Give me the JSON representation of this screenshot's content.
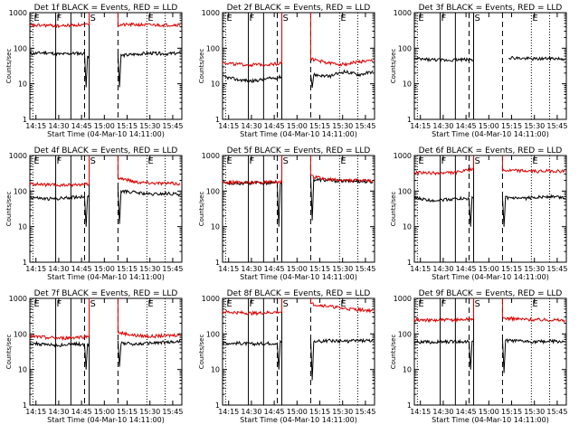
{
  "figure": {
    "background": "#ffffff",
    "series_colors": {
      "events": "#000000",
      "lld": "#dd0000"
    },
    "x_ticks": [
      {
        "t": 4,
        "label": "14:15"
      },
      {
        "t": 19,
        "label": "14:30"
      },
      {
        "t": 34,
        "label": "14:45"
      },
      {
        "t": 49,
        "label": "15:00"
      },
      {
        "t": 64,
        "label": "15:15"
      },
      {
        "t": 79,
        "label": "15:30"
      },
      {
        "t": 94,
        "label": "15:45"
      }
    ],
    "y_ticks": [
      {
        "v": 1,
        "label": "1"
      },
      {
        "v": 10,
        "label": "10"
      },
      {
        "v": 100,
        "label": "100"
      },
      {
        "v": 1000,
        "label": "1000"
      }
    ],
    "ylabel": "Counts/sec",
    "xlabel": "Start Time (04-Mar-10 14:11:00)",
    "markers": [
      {
        "t": 2,
        "letter": "E",
        "style": "dotted"
      },
      {
        "t": 17,
        "letter": "F",
        "style": "solid"
      },
      {
        "t": 27,
        "letter": "",
        "style": "solid"
      },
      {
        "t": 36,
        "letter": "",
        "style": "dashed"
      },
      {
        "t": 39,
        "letter": "S",
        "style": "solid"
      },
      {
        "t": 58,
        "letter": "",
        "style": "dashed"
      },
      {
        "t": 77,
        "letter": "E",
        "style": "dotted"
      },
      {
        "t": 89,
        "letter": "",
        "style": "dotted"
      }
    ]
  },
  "chart_data": [
    {
      "type": "line",
      "title": "Det  1f  BLACK = Events, RED = LLD",
      "xlabel": "Start Time (04-Mar-10 14:11:00)",
      "ylabel": "Counts/sec",
      "y_scale": "log",
      "ylim": [
        1,
        1000
      ],
      "x_range": [
        "14:11",
        "15:51"
      ],
      "series": [
        {
          "key": "events",
          "points": [
            [
              0,
              70
            ],
            [
              10,
              75
            ],
            [
              20,
              68
            ],
            [
              30,
              72
            ],
            [
              36,
              70
            ],
            [
              37,
              8
            ],
            [
              38,
              60
            ],
            [
              39,
              60
            ]
          ],
          "after": [
            [
              58,
              70
            ],
            [
              59,
              8
            ],
            [
              60,
              62
            ],
            [
              70,
              68
            ],
            [
              80,
              72
            ],
            [
              90,
              70
            ],
            [
              99,
              72
            ]
          ]
        },
        {
          "key": "lld",
          "points": [
            [
              0,
              430
            ],
            [
              10,
              440
            ],
            [
              20,
              420
            ],
            [
              30,
              450
            ],
            [
              39,
              450
            ]
          ],
          "after": [
            [
              58,
              450
            ],
            [
              70,
              460
            ],
            [
              80,
              450
            ],
            [
              90,
              450
            ],
            [
              99,
              460
            ]
          ]
        }
      ]
    },
    {
      "type": "line",
      "title": "Det  2f  BLACK = Events, RED = LLD",
      "xlabel": "Start Time (04-Mar-10 14:11:00)",
      "ylabel": "Counts/sec",
      "y_scale": "log",
      "ylim": [
        1,
        1000
      ],
      "x_range": [
        "14:11",
        "15:51"
      ],
      "series": [
        {
          "key": "events",
          "points": [
            [
              0,
              16
            ],
            [
              10,
              13
            ],
            [
              20,
              12
            ],
            [
              30,
              14
            ],
            [
              36,
              15
            ],
            [
              39,
              16
            ]
          ],
          "after": [
            [
              58,
              20
            ],
            [
              59,
              8
            ],
            [
              60,
              18
            ],
            [
              70,
              16
            ],
            [
              80,
              22
            ],
            [
              90,
              18
            ],
            [
              99,
              22
            ]
          ]
        },
        {
          "key": "lld",
          "points": [
            [
              0,
              40
            ],
            [
              10,
              35
            ],
            [
              20,
              34
            ],
            [
              30,
              35
            ],
            [
              39,
              38
            ]
          ],
          "after": [
            [
              58,
              50
            ],
            [
              70,
              38
            ],
            [
              80,
              35
            ],
            [
              90,
              42
            ],
            [
              99,
              44
            ]
          ]
        }
      ]
    },
    {
      "type": "line",
      "title": "Det  3f  BLACK = Events, RED = LLD",
      "xlabel": "Start Time (04-Mar-10 14:11:00)",
      "ylabel": "Counts/sec",
      "y_scale": "log",
      "ylim": [
        1,
        1000
      ],
      "x_range": [
        "14:11",
        "15:51"
      ],
      "series": [
        {
          "key": "events",
          "points": [
            [
              0,
              50
            ],
            [
              10,
              48
            ],
            [
              20,
              46
            ],
            [
              30,
              48
            ],
            [
              39,
              48
            ]
          ],
          "after": [
            [
              62,
              55
            ],
            [
              70,
              52
            ],
            [
              80,
              50
            ],
            [
              90,
              52
            ],
            [
              99,
              50
            ]
          ]
        }
      ]
    },
    {
      "type": "line",
      "title": "Det  4f  BLACK = Events, RED = LLD",
      "xlabel": "Start Time (04-Mar-10 14:11:00)",
      "ylabel": "Counts/sec",
      "y_scale": "log",
      "ylim": [
        1,
        1000
      ],
      "x_range": [
        "14:11",
        "15:51"
      ],
      "series": [
        {
          "key": "events",
          "points": [
            [
              0,
              68
            ],
            [
              10,
              60
            ],
            [
              20,
              62
            ],
            [
              30,
              68
            ],
            [
              36,
              70
            ],
            [
              37,
              10
            ],
            [
              38,
              75
            ],
            [
              39,
              80
            ]
          ],
          "after": [
            [
              58,
              130
            ],
            [
              59,
              12
            ],
            [
              60,
              100
            ],
            [
              70,
              90
            ],
            [
              80,
              80
            ],
            [
              90,
              85
            ],
            [
              99,
              80
            ]
          ]
        },
        {
          "key": "lld",
          "points": [
            [
              0,
              160
            ],
            [
              10,
              150
            ],
            [
              20,
              145
            ],
            [
              30,
              150
            ],
            [
              39,
              160
            ]
          ],
          "after": [
            [
              58,
              240
            ],
            [
              70,
              180
            ],
            [
              80,
              170
            ],
            [
              90,
              165
            ],
            [
              99,
              160
            ]
          ]
        }
      ]
    },
    {
      "type": "line",
      "title": "Det  5f  BLACK = Events, RED = LLD",
      "xlabel": "Start Time (04-Mar-10 14:11:00)",
      "ylabel": "Counts/sec",
      "y_scale": "log",
      "ylim": [
        1,
        1000
      ],
      "x_range": [
        "14:11",
        "15:51"
      ],
      "series": [
        {
          "key": "events",
          "points": [
            [
              0,
              170
            ],
            [
              10,
              165
            ],
            [
              20,
              168
            ],
            [
              30,
              170
            ],
            [
              36,
              170
            ],
            [
              37,
              10
            ],
            [
              38,
              170
            ],
            [
              39,
              170
            ]
          ],
          "after": [
            [
              58,
              250
            ],
            [
              59,
              15
            ],
            [
              60,
              210
            ],
            [
              70,
              200
            ],
            [
              80,
              190
            ],
            [
              90,
              190
            ],
            [
              99,
              180
            ]
          ]
        },
        {
          "key": "lld",
          "points": [
            [
              0,
              180
            ],
            [
              10,
              175
            ],
            [
              20,
              175
            ],
            [
              30,
              180
            ],
            [
              39,
              180
            ]
          ],
          "after": [
            [
              58,
              260
            ],
            [
              70,
              210
            ],
            [
              80,
              200
            ],
            [
              90,
              200
            ],
            [
              99,
              190
            ]
          ]
        }
      ]
    },
    {
      "type": "line",
      "title": "Det  6f  BLACK = Events, RED = LLD",
      "xlabel": "Start Time (04-Mar-10 14:11:00)",
      "ylabel": "Counts/sec",
      "y_scale": "log",
      "ylim": [
        1,
        1000
      ],
      "x_range": [
        "14:11",
        "15:51"
      ],
      "series": [
        {
          "key": "events",
          "points": [
            [
              0,
              65
            ],
            [
              10,
              55
            ],
            [
              20,
              58
            ],
            [
              30,
              62
            ],
            [
              36,
              60
            ],
            [
              37,
              10
            ],
            [
              38,
              62
            ],
            [
              39,
              62
            ]
          ],
          "after": [
            [
              58,
              70
            ],
            [
              59,
              10
            ],
            [
              60,
              65
            ],
            [
              70,
              60
            ],
            [
              80,
              68
            ],
            [
              90,
              70
            ],
            [
              99,
              65
            ]
          ]
        },
        {
          "key": "lld",
          "points": [
            [
              0,
              330
            ],
            [
              10,
              320
            ],
            [
              20,
              320
            ],
            [
              30,
              340
            ],
            [
              39,
              420
            ]
          ],
          "after": [
            [
              58,
              380
            ],
            [
              70,
              370
            ],
            [
              80,
              360
            ],
            [
              90,
              370
            ],
            [
              99,
              360
            ]
          ]
        }
      ]
    },
    {
      "type": "line",
      "title": "Det  7f  BLACK = Events, RED = LLD",
      "xlabel": "Start Time (04-Mar-10 14:11:00)",
      "ylabel": "Counts/sec",
      "y_scale": "log",
      "ylim": [
        1,
        1000
      ],
      "x_range": [
        "14:11",
        "15:51"
      ],
      "series": [
        {
          "key": "events",
          "points": [
            [
              0,
              55
            ],
            [
              10,
              50
            ],
            [
              20,
              48
            ],
            [
              30,
              52
            ],
            [
              36,
              50
            ],
            [
              37,
              10
            ],
            [
              38,
              50
            ],
            [
              39,
              52
            ]
          ],
          "after": [
            [
              58,
              65
            ],
            [
              59,
              12
            ],
            [
              60,
              55
            ],
            [
              70,
              52
            ],
            [
              80,
              55
            ],
            [
              90,
              58
            ],
            [
              99,
              60
            ]
          ]
        },
        {
          "key": "lld",
          "points": [
            [
              0,
              85
            ],
            [
              10,
              80
            ],
            [
              20,
              75
            ],
            [
              30,
              80
            ],
            [
              39,
              85
            ]
          ],
          "after": [
            [
              58,
              110
            ],
            [
              70,
              90
            ],
            [
              80,
              85
            ],
            [
              90,
              90
            ],
            [
              99,
              95
            ]
          ]
        }
      ]
    },
    {
      "type": "line",
      "title": "Det  8f  BLACK = Events, RED = LLD",
      "xlabel": "Start Time (04-Mar-10 14:11:00)",
      "ylabel": "Counts/sec",
      "y_scale": "log",
      "ylim": [
        1,
        1000
      ],
      "x_range": [
        "14:11",
        "15:51"
      ],
      "series": [
        {
          "key": "events",
          "points": [
            [
              0,
              55
            ],
            [
              10,
              55
            ],
            [
              20,
              52
            ],
            [
              30,
              55
            ],
            [
              36,
              55
            ],
            [
              37,
              10
            ],
            [
              38,
              60
            ],
            [
              39,
              60
            ]
          ],
          "after": [
            [
              58,
              75
            ],
            [
              59,
              5
            ],
            [
              60,
              60
            ],
            [
              70,
              65
            ],
            [
              80,
              62
            ],
            [
              90,
              65
            ],
            [
              99,
              65
            ]
          ]
        },
        {
          "key": "lld",
          "points": [
            [
              0,
              420
            ],
            [
              10,
              400
            ],
            [
              20,
              380
            ],
            [
              30,
              400
            ],
            [
              39,
              420
            ]
          ],
          "after": [
            [
              58,
              700
            ],
            [
              70,
              600
            ],
            [
              80,
              520
            ],
            [
              90,
              480
            ],
            [
              99,
              450
            ]
          ]
        }
      ]
    },
    {
      "type": "line",
      "title": "Det  9f  BLACK = Events, RED = LLD",
      "xlabel": "Start Time (04-Mar-10 14:11:00)",
      "ylabel": "Counts/sec",
      "y_scale": "log",
      "ylim": [
        1,
        1000
      ],
      "x_range": [
        "14:11",
        "15:51"
      ],
      "series": [
        {
          "key": "events",
          "points": [
            [
              0,
              60
            ],
            [
              10,
              58
            ],
            [
              20,
              60
            ],
            [
              30,
              62
            ],
            [
              36,
              60
            ],
            [
              37,
              10
            ],
            [
              38,
              60
            ],
            [
              39,
              60
            ]
          ],
          "after": [
            [
              58,
              75
            ],
            [
              59,
              8
            ],
            [
              60,
              65
            ],
            [
              70,
              62
            ],
            [
              80,
              60
            ],
            [
              90,
              62
            ],
            [
              99,
              60
            ]
          ]
        },
        {
          "key": "lld",
          "points": [
            [
              0,
              250
            ],
            [
              10,
              240
            ],
            [
              20,
              245
            ],
            [
              30,
              250
            ],
            [
              39,
              270
            ]
          ],
          "after": [
            [
              58,
              280
            ],
            [
              70,
              260
            ],
            [
              80,
              250
            ],
            [
              90,
              250
            ],
            [
              99,
              240
            ]
          ]
        }
      ]
    }
  ]
}
